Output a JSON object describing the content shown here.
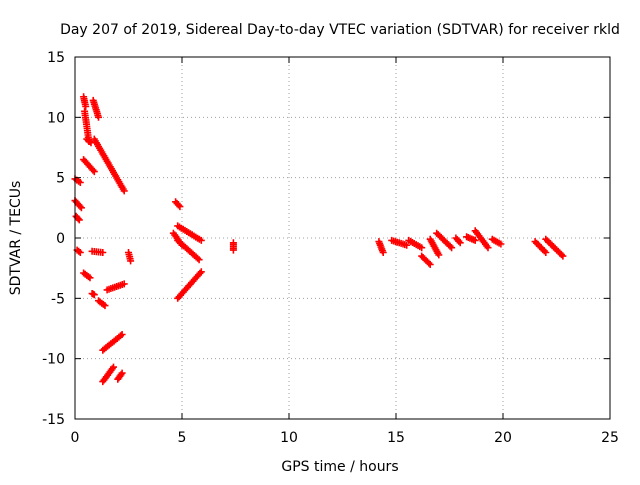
{
  "chart_data": {
    "type": "scatter",
    "title": "Day 207 of 2019, Sidereal Day-to-day VTEC variation (SDTVAR) for receiver rkld",
    "xlabel": "GPS time / hours",
    "ylabel": "SDTVAR / TECUs",
    "xlim": [
      0,
      25
    ],
    "ylim": [
      -15,
      15
    ],
    "xticks": [
      0,
      5,
      10,
      15,
      20,
      25
    ],
    "yticks": [
      -15,
      -10,
      -5,
      0,
      5,
      10,
      15
    ],
    "grid": true,
    "marker": "plus",
    "color": "#ff0000",
    "series": [
      {
        "name": "SDTVAR",
        "segments": [
          {
            "x": [
              0.0,
              0.25
            ],
            "y": [
              4.9,
              4.6
            ]
          },
          {
            "x": [
              0.0,
              0.3
            ],
            "y": [
              3.1,
              2.5
            ]
          },
          {
            "x": [
              0.05,
              0.2
            ],
            "y": [
              1.8,
              1.5
            ]
          },
          {
            "x": [
              0.1,
              0.25
            ],
            "y": [
              -1.0,
              -1.2
            ]
          },
          {
            "x": [
              0.4,
              0.5
            ],
            "y": [
              11.7,
              10.9
            ]
          },
          {
            "x": [
              0.45,
              0.65
            ],
            "y": [
              10.5,
              8.0
            ]
          },
          {
            "x": [
              0.4,
              0.9
            ],
            "y": [
              6.5,
              5.5
            ]
          },
          {
            "x": [
              0.55,
              0.75
            ],
            "y": [
              8.2,
              7.9
            ]
          },
          {
            "x": [
              0.85,
              1.1
            ],
            "y": [
              11.4,
              10.0
            ]
          },
          {
            "x": [
              0.9,
              2.3
            ],
            "y": [
              8.2,
              3.9
            ]
          },
          {
            "x": [
              0.4,
              0.7
            ],
            "y": [
              -2.9,
              -3.3
            ]
          },
          {
            "x": [
              0.8,
              1.3
            ],
            "y": [
              -1.1,
              -1.2
            ]
          },
          {
            "x": [
              0.8,
              0.9
            ],
            "y": [
              -4.6,
              -4.7
            ]
          },
          {
            "x": [
              1.1,
              1.4
            ],
            "y": [
              -5.2,
              -5.6
            ]
          },
          {
            "x": [
              1.5,
              2.3
            ],
            "y": [
              -4.3,
              -3.8
            ]
          },
          {
            "x": [
              1.3,
              2.2
            ],
            "y": [
              -9.3,
              -8.0
            ]
          },
          {
            "x": [
              1.3,
              1.8
            ],
            "y": [
              -11.9,
              -10.7
            ]
          },
          {
            "x": [
              2.0,
              2.2
            ],
            "y": [
              -11.7,
              -11.2
            ]
          },
          {
            "x": [
              2.5,
              2.6
            ],
            "y": [
              -1.2,
              -1.9
            ]
          },
          {
            "x": [
              4.7,
              4.9
            ],
            "y": [
              3.0,
              2.6
            ]
          },
          {
            "x": [
              4.6,
              5.0
            ],
            "y": [
              0.4,
              -0.6
            ]
          },
          {
            "x": [
              4.8,
              5.9
            ],
            "y": [
              1.0,
              -0.2
            ]
          },
          {
            "x": [
              4.8,
              5.8
            ],
            "y": [
              -0.2,
              -1.8
            ]
          },
          {
            "x": [
              4.8,
              5.9
            ],
            "y": [
              -5.0,
              -2.8
            ]
          },
          {
            "x": [
              7.4,
              7.4
            ],
            "y": [
              -0.4,
              -1.0
            ]
          },
          {
            "x": [
              14.2,
              14.4
            ],
            "y": [
              -0.3,
              -1.2
            ]
          },
          {
            "x": [
              14.8,
              15.5
            ],
            "y": [
              -0.2,
              -0.6
            ]
          },
          {
            "x": [
              15.6,
              16.2
            ],
            "y": [
              -0.2,
              -0.8
            ]
          },
          {
            "x": [
              16.2,
              16.6
            ],
            "y": [
              -1.5,
              -2.2
            ]
          },
          {
            "x": [
              16.6,
              17.0
            ],
            "y": [
              -0.1,
              -1.4
            ]
          },
          {
            "x": [
              16.9,
              17.6
            ],
            "y": [
              0.4,
              -0.8
            ]
          },
          {
            "x": [
              17.8,
              18.0
            ],
            "y": [
              0.0,
              -0.4
            ]
          },
          {
            "x": [
              18.3,
              18.7
            ],
            "y": [
              0.1,
              -0.2
            ]
          },
          {
            "x": [
              18.7,
              19.3
            ],
            "y": [
              0.6,
              -0.8
            ]
          },
          {
            "x": [
              19.5,
              19.9
            ],
            "y": [
              -0.1,
              -0.5
            ]
          },
          {
            "x": [
              21.5,
              22.0
            ],
            "y": [
              -0.3,
              -1.2
            ]
          },
          {
            "x": [
              22.0,
              22.8
            ],
            "y": [
              -0.1,
              -1.5
            ]
          }
        ]
      }
    ]
  }
}
